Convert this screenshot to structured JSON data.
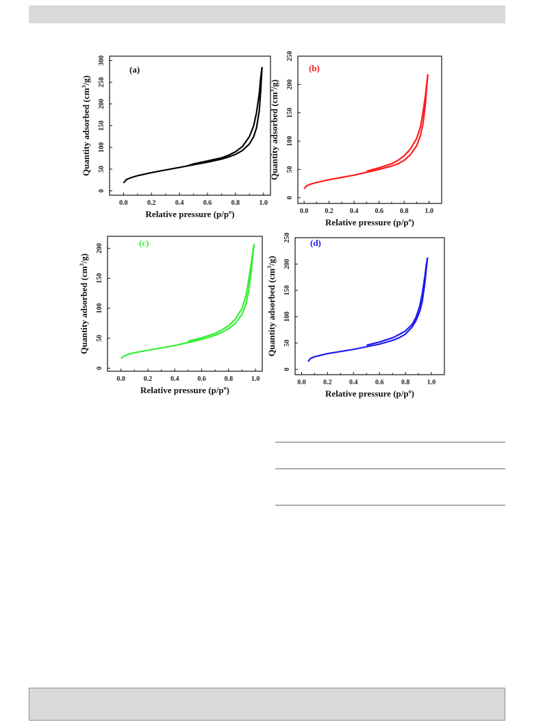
{
  "chart_data": [
    {
      "type": "line",
      "panel_label": "(a)",
      "color": "#000000",
      "xlabel": "Relative pressure (p/p",
      "xlabel_sup": "o",
      "xlabel_end": ")",
      "ylabel_pre": "Quantity adsorbed (cm",
      "ylabel_sup": "3",
      "ylabel_post": "/g)",
      "xlim": [
        -0.1,
        1.05
      ],
      "ylim": [
        -10,
        310
      ],
      "xticks": [
        "0.0",
        "0.2",
        "0.4",
        "0.6",
        "0.8",
        "1.0"
      ],
      "yticks": [
        "0",
        "50",
        "100",
        "150",
        "200",
        "250",
        "300"
      ],
      "series": [
        {
          "x": [
            0.0,
            0.02,
            0.05,
            0.1,
            0.2,
            0.3,
            0.4,
            0.5,
            0.6,
            0.7,
            0.75,
            0.8,
            0.85,
            0.9,
            0.93,
            0.95,
            0.97,
            0.98,
            0.99
          ],
          "y": [
            18,
            26,
            30,
            35,
            42,
            48,
            54,
            60,
            66,
            73,
            78,
            84,
            93,
            108,
            125,
            145,
            185,
            230,
            285
          ]
        },
        {
          "x": [
            0.99,
            0.98,
            0.97,
            0.95,
            0.93,
            0.9,
            0.85,
            0.8,
            0.75,
            0.7,
            0.6,
            0.5,
            0.45
          ],
          "y": [
            285,
            260,
            225,
            180,
            150,
            125,
            102,
            90,
            82,
            76,
            69,
            62,
            57
          ]
        }
      ]
    },
    {
      "type": "line",
      "panel_label": "(b)",
      "color": "#ff1a1a",
      "xlabel": "Relative pressure (p/p",
      "xlabel_sup": "o",
      "xlabel_end": ")",
      "ylabel_pre": "Quantity adsorbed (cm",
      "ylabel_sup": "3",
      "ylabel_post": "/g)",
      "xlim": [
        -0.05,
        1.1
      ],
      "ylim": [
        -10,
        250
      ],
      "xticks": [
        "0.0",
        "0.2",
        "0.4",
        "0.6",
        "0.8",
        "1.0"
      ],
      "yticks": [
        "0",
        "50",
        "100",
        "150",
        "200",
        "250"
      ],
      "series": [
        {
          "x": [
            0.0,
            0.02,
            0.05,
            0.1,
            0.2,
            0.3,
            0.4,
            0.5,
            0.6,
            0.7,
            0.75,
            0.8,
            0.85,
            0.9,
            0.93,
            0.95,
            0.97,
            0.98,
            0.99
          ],
          "y": [
            16,
            21,
            24,
            27,
            32,
            36,
            40,
            45,
            50,
            56,
            60,
            66,
            76,
            92,
            110,
            130,
            165,
            195,
            218
          ]
        },
        {
          "x": [
            0.99,
            0.98,
            0.97,
            0.95,
            0.93,
            0.9,
            0.85,
            0.8,
            0.75,
            0.7,
            0.6,
            0.5
          ],
          "y": [
            218,
            200,
            180,
            150,
            125,
            105,
            86,
            74,
            66,
            60,
            53,
            47
          ]
        }
      ]
    },
    {
      "type": "line",
      "panel_label": "(c)",
      "color": "#33ee33",
      "xlabel": "Relative pressure (p/p",
      "xlabel_sup": "o",
      "xlabel_end": ")",
      "ylabel_pre": "Quantity adsorbed (cm",
      "ylabel_sup": "3",
      "ylabel_post": "/g)",
      "xlim": [
        -0.1,
        1.05
      ],
      "ylim": [
        -5,
        220
      ],
      "xticks": [
        "0.0",
        "0.2",
        "0.4",
        "0.6",
        "0.8",
        "1.0"
      ],
      "yticks": [
        "0",
        "50",
        "100",
        "150",
        "200"
      ],
      "series": [
        {
          "x": [
            0.0,
            0.02,
            0.05,
            0.1,
            0.2,
            0.3,
            0.4,
            0.5,
            0.6,
            0.7,
            0.75,
            0.8,
            0.85,
            0.9,
            0.93,
            0.95,
            0.97,
            0.98,
            0.99
          ],
          "y": [
            16,
            20,
            23,
            26,
            30,
            34,
            38,
            43,
            48,
            55,
            60,
            66,
            75,
            90,
            108,
            130,
            165,
            190,
            207
          ]
        },
        {
          "x": [
            0.99,
            0.98,
            0.97,
            0.95,
            0.93,
            0.9,
            0.85,
            0.8,
            0.75,
            0.7,
            0.6,
            0.5
          ],
          "y": [
            207,
            195,
            178,
            148,
            122,
            100,
            82,
            71,
            64,
            58,
            51,
            45
          ]
        }
      ]
    },
    {
      "type": "line",
      "panel_label": "(d)",
      "color": "#1a1aee",
      "xlabel": "Relative pressure (p/p",
      "xlabel_sup": "o",
      "xlabel_end": ")",
      "ylabel_pre": "Quantity adsorbed (cm",
      "ylabel_sup": "3",
      "ylabel_post": "/g)",
      "xlim": [
        -0.05,
        1.1
      ],
      "ylim": [
        -10,
        250
      ],
      "xticks": [
        "0.0",
        "0.2",
        "0.4",
        "0.6",
        "0.8",
        "1.0"
      ],
      "yticks": [
        "0",
        "50",
        "100",
        "150",
        "200",
        "250"
      ],
      "series": [
        {
          "x": [
            0.05,
            0.07,
            0.1,
            0.15,
            0.2,
            0.3,
            0.4,
            0.5,
            0.6,
            0.7,
            0.75,
            0.8,
            0.85,
            0.88,
            0.91,
            0.93,
            0.95,
            0.96,
            0.97
          ],
          "y": [
            15,
            21,
            24,
            27,
            30,
            34,
            38,
            43,
            48,
            55,
            60,
            67,
            80,
            92,
            110,
            130,
            165,
            190,
            212
          ]
        },
        {
          "x": [
            0.97,
            0.96,
            0.95,
            0.93,
            0.91,
            0.88,
            0.85,
            0.8,
            0.75,
            0.7,
            0.6,
            0.5
          ],
          "y": [
            212,
            198,
            178,
            145,
            120,
            98,
            85,
            73,
            66,
            60,
            52,
            46
          ]
        }
      ]
    }
  ]
}
